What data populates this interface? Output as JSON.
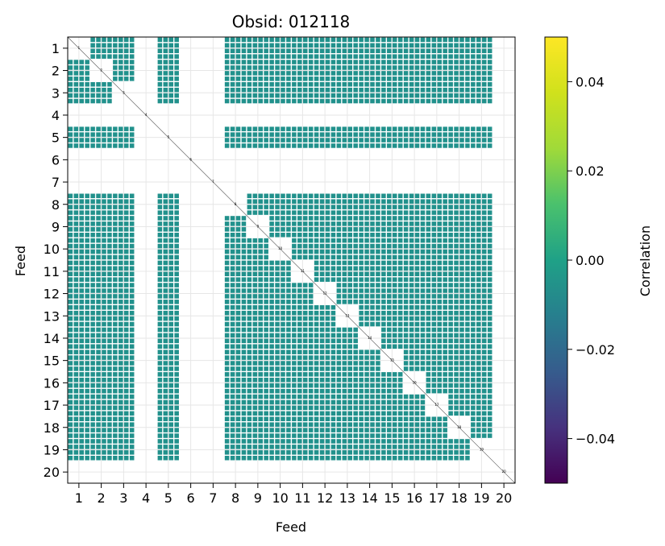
{
  "chart_data": {
    "type": "heatmap",
    "title": "Obsid: 012118",
    "xlabel": "Feed",
    "ylabel": "Feed",
    "feeds": [
      1,
      2,
      3,
      4,
      5,
      6,
      7,
      8,
      9,
      10,
      11,
      12,
      13,
      14,
      15,
      16,
      17,
      18,
      19,
      20
    ],
    "tick_labels": [
      "1",
      "2",
      "3",
      "4",
      "5",
      "6",
      "7",
      "8",
      "9",
      "10",
      "11",
      "12",
      "13",
      "14",
      "15",
      "16",
      "17",
      "18",
      "19",
      "20"
    ],
    "inactive_feeds": [
      4,
      6,
      7,
      20
    ],
    "uniform_value": 0.0,
    "diagonal_labels": [
      "1",
      "2",
      "3",
      "4",
      "5",
      "6",
      "7",
      "8",
      "9",
      "10",
      "11",
      "12",
      "13",
      "14",
      "15",
      "16",
      "17",
      "18",
      "19",
      "20"
    ],
    "grid": true,
    "colorbar": {
      "label": "Correlation",
      "colormap": "viridis",
      "vmin": -0.05,
      "vmax": 0.05,
      "ticks": [
        -0.04,
        -0.02,
        0.0,
        0.02,
        0.04
      ],
      "tick_labels": [
        "−0.04",
        "−0.02",
        "0.00",
        "0.02",
        "0.04"
      ]
    },
    "colors": {
      "viridis_mid": "#21918c",
      "grid": "#e6e6e6",
      "diagonal": "#555555"
    }
  }
}
